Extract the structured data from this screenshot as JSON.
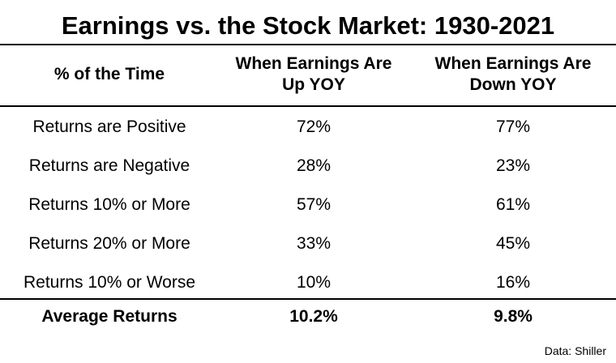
{
  "chart_data": {
    "type": "table",
    "title": "Earnings vs. the Stock Market: 1930-2021",
    "columns": [
      "% of the Time",
      "When Earnings Are Up YOY",
      "When Earnings Are Down YOY"
    ],
    "column_header_lines": [
      [
        "% of the Time"
      ],
      [
        "When Earnings Are",
        "Up YOY"
      ],
      [
        "When Earnings Are",
        "Down YOY"
      ]
    ],
    "rows": [
      [
        "Returns are Positive",
        "72%",
        "77%"
      ],
      [
        "Returns are Negative",
        "28%",
        "23%"
      ],
      [
        "Returns 10% or More",
        "57%",
        "61%"
      ],
      [
        "Returns 20% or More",
        "33%",
        "45%"
      ],
      [
        "Returns 10% or Worse",
        "10%",
        "16%"
      ]
    ],
    "footer_row": [
      "Average Returns",
      "10.2%",
      "9.8%"
    ],
    "source": "Data: Shiller"
  }
}
